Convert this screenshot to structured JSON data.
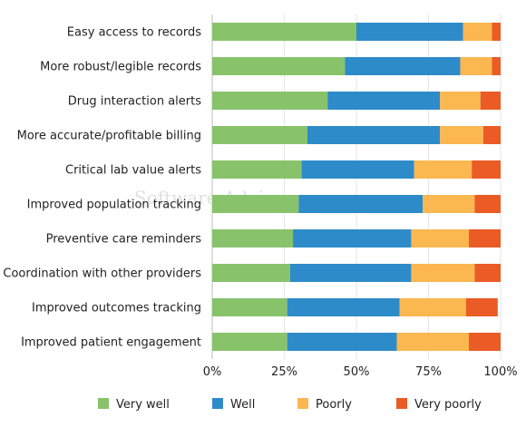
{
  "chart_data": {
    "type": "bar",
    "orientation": "horizontal",
    "stacked": true,
    "categories": [
      "Easy access to records",
      "More robust/legible records",
      "Drug interaction alerts",
      "More accurate/profitable billing",
      "Critical lab value alerts",
      "Improved population tracking",
      "Preventive care reminders",
      "Coordination with other providers",
      "Improved outcomes tracking",
      "Improved patient engagement"
    ],
    "series": [
      {
        "name": "Very well",
        "color": "#88c36c",
        "values": [
          50,
          46,
          40,
          33,
          31,
          30,
          28,
          27,
          26,
          26
        ]
      },
      {
        "name": "Well",
        "color": "#2e8bc9",
        "values": [
          37,
          40,
          39,
          46,
          39,
          43,
          41,
          42,
          39,
          38
        ]
      },
      {
        "name": "Poorly",
        "color": "#fbb750",
        "values": [
          10,
          11,
          14,
          15,
          20,
          18,
          20,
          22,
          23,
          25
        ]
      },
      {
        "name": "Very poorly",
        "color": "#ea5b25",
        "values": [
          3,
          3,
          7,
          6,
          10,
          9,
          11,
          9,
          11,
          11
        ]
      }
    ],
    "xlim": [
      0,
      100
    ],
    "xticks": [
      "0%",
      "25%",
      "50%",
      "75%",
      "100%"
    ],
    "grid": true,
    "legend_position": "bottom",
    "watermark": "Software Advice"
  }
}
